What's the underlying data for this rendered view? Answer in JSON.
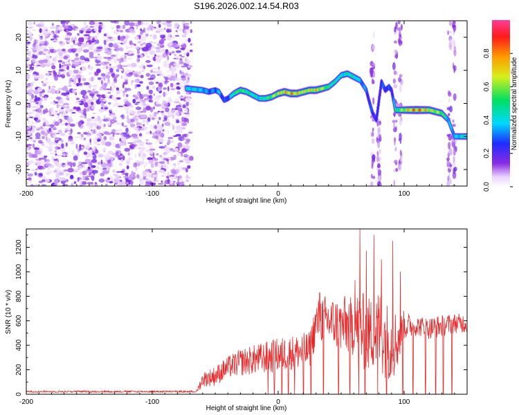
{
  "page": {
    "title": "S196.2026.002.14.54.R03"
  },
  "chart_data": [
    {
      "type": "heatmap",
      "xlabel": "Height of straight line (km)",
      "ylabel": "Frequency (Hz)",
      "xlim": [
        -200,
        150
      ],
      "ylim": [
        -25,
        25
      ],
      "xticks": [
        -200,
        -100,
        0,
        100
      ],
      "yticks": [
        -20,
        -10,
        0,
        10,
        20
      ],
      "colorbar": {
        "label": "Normalized spectral amplitude",
        "range": [
          0,
          1
        ],
        "ticks": [
          "0.0",
          "0.2",
          "0.4",
          "0.6",
          "0.8"
        ],
        "colormap": "rainbow (white-purple-blue-cyan-green-yellow-red-pink)"
      },
      "noise_region_x": [
        -200,
        -73
      ],
      "ridge": {
        "x": [
          -73,
          -65,
          -60,
          -55,
          -50,
          -47,
          -43,
          -40,
          -35,
          -30,
          -25,
          -20,
          -15,
          -10,
          -5,
          0,
          5,
          10,
          15,
          20,
          25,
          30,
          35,
          40,
          45,
          50,
          55,
          60,
          65,
          70,
          72,
          75,
          78,
          82,
          85,
          88,
          90,
          93,
          95,
          100,
          105,
          110,
          115,
          120,
          125,
          130,
          135,
          140,
          145,
          150
        ],
        "y": [
          4.5,
          4.2,
          4.0,
          3.5,
          4.0,
          3.5,
          1.0,
          1.5,
          3.0,
          4.0,
          3.5,
          2.5,
          1.5,
          1.5,
          2.0,
          3.0,
          3.5,
          3.0,
          3.0,
          3.5,
          4.0,
          4.0,
          4.5,
          5.0,
          6.5,
          8.5,
          9.0,
          8.0,
          7.0,
          4.0,
          1.0,
          -3.0,
          -5.0,
          6.5,
          4.0,
          5.0,
          4.0,
          -2.0,
          -2.0,
          -2.0,
          -2.0,
          -2.0,
          -2.0,
          -2.0,
          -2.5,
          -3.0,
          -5.0,
          -10.0,
          -10.0,
          -10.0
        ],
        "amplitude": [
          0.45,
          0.45,
          0.4,
          0.35,
          0.35,
          0.4,
          0.3,
          0.3,
          0.55,
          0.6,
          0.55,
          0.5,
          0.45,
          0.55,
          0.65,
          0.75,
          0.8,
          0.85,
          0.8,
          0.75,
          0.75,
          0.8,
          0.7,
          0.55,
          0.5,
          0.45,
          0.5,
          0.5,
          0.4,
          0.35,
          0.3,
          0.3,
          0.25,
          0.3,
          0.3,
          0.3,
          0.25,
          0.55,
          0.6,
          0.7,
          0.85,
          0.9,
          0.85,
          0.75,
          0.7,
          0.65,
          0.4,
          0.4,
          0.45,
          0.5
        ]
      }
    },
    {
      "type": "line",
      "xlabel": "Height of straight line (km)",
      "ylabel": "SNR (10 * v/v)",
      "xlim": [
        -200,
        150
      ],
      "ylim": [
        0,
        1350
      ],
      "xticks": [
        -200,
        -100,
        0,
        100
      ],
      "yticks": [
        0,
        200,
        400,
        600,
        800,
        1000,
        1200
      ],
      "series": [
        {
          "color": "#e8292a",
          "envelope": {
            "x": [
              -200,
              -65,
              -60,
              -50,
              -40,
              -30,
              -20,
              -10,
              0,
              10,
              20,
              25,
              30,
              35,
              40,
              50,
              60,
              65,
              70,
              75,
              80,
              90,
              95,
              100,
              110,
              120,
              130,
              140,
              150
            ],
            "base": [
              20,
              20,
              120,
              150,
              220,
              260,
              280,
              300,
              320,
              340,
              350,
              360,
              580,
              620,
              600,
              560,
              560,
              540,
              480,
              500,
              520,
              400,
              450,
              560,
              560,
              540,
              560,
              580,
              580
            ],
            "spread": [
              10,
              10,
              60,
              80,
              90,
              110,
              120,
              130,
              140,
              140,
              150,
              150,
              180,
              200,
              200,
              220,
              250,
              320,
              320,
              300,
              350,
              300,
              250,
              120,
              80,
              90,
              90,
              80,
              80
            ]
          },
          "peaks": [
            [
              65,
              1350
            ],
            [
              70,
              1170
            ],
            [
              76,
              1300
            ],
            [
              82,
              1100
            ],
            [
              91,
              1250
            ],
            [
              97,
              1000
            ],
            [
              61,
              930
            ],
            [
              33,
              830
            ],
            [
              53,
              800
            ]
          ],
          "dropouts": [
            -8,
            -3,
            3,
            8,
            13,
            20,
            26,
            36,
            48,
            57,
            64,
            69,
            79,
            86,
            99,
            107,
            117,
            125,
            131,
            138
          ]
        }
      ]
    }
  ]
}
